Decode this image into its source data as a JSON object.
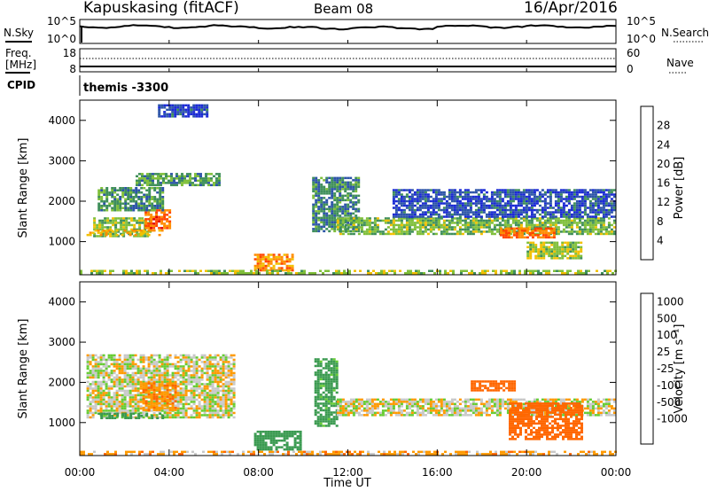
{
  "header": {
    "station": "Kapuskasing (fitACF)",
    "beam": "Beam 08",
    "date": "16/Apr/2016"
  },
  "top_panels": {
    "nsky_label": "N.Sky",
    "nsky_ticks": [
      "10^5",
      "10^0"
    ],
    "nsky_right_ticks": [
      "10^5",
      "10^0"
    ],
    "nsearch_label": "N.Search",
    "freq_label_line1": "Freq.",
    "freq_label_line2": "[MHz]",
    "freq_ticks": [
      "18",
      "8"
    ],
    "nave_ticks": [
      "60",
      "0"
    ],
    "nave_label": "Nave",
    "cpid_label": "CPID",
    "cpid_text": "themis -3300"
  },
  "colors": {
    "power_scale": [
      "#1a2ad4",
      "#2d55a8",
      "#3f8f5a",
      "#7fbf3a",
      "#f2c000",
      "#ff8c00",
      "#ff4400",
      "#e00000"
    ],
    "velocity_scale": [
      "#1a2ad4",
      "#2e5fa8",
      "#3a9a50",
      "#66cc33",
      "#c8c8c8",
      "#ff9900",
      "#ff6600",
      "#ff2200",
      "#e00000"
    ],
    "ground_scatter": "#c8c8c8"
  },
  "chart_data": [
    {
      "type": "heatmap",
      "panel": "power",
      "ylabel": "Slant Range [km]",
      "xlabel": "Time UT",
      "x_ticks": [
        "00:00",
        "04:00",
        "08:00",
        "12:00",
        "16:00",
        "20:00",
        "00:00"
      ],
      "xlim_hours": [
        0,
        24
      ],
      "ylim_km": [
        180,
        4500
      ],
      "y_ticks": [
        1000,
        2000,
        3000,
        4000
      ],
      "colorbar_label": "Power [dB]",
      "colorbar_ticks": [
        "4",
        "8",
        "12",
        "16",
        "20",
        "24",
        "28"
      ],
      "colorbar_range": [
        0,
        30
      ],
      "bands": [
        {
          "t0": 0.6,
          "t1": 3.2,
          "r0": 1100,
          "r1": 1600,
          "value": 14
        },
        {
          "t0": 2.9,
          "t1": 4.1,
          "r0": 1300,
          "r1": 1800,
          "value": 25
        },
        {
          "t0": 0.8,
          "t1": 3.8,
          "r0": 1750,
          "r1": 2350,
          "value": 10
        },
        {
          "t0": 2.5,
          "t1": 6.3,
          "r0": 2350,
          "r1": 2700,
          "value": 11
        },
        {
          "t0": 0.3,
          "t1": 3.8,
          "r0": 1150,
          "r1": 1300,
          "value": 20
        },
        {
          "t0": 7.8,
          "t1": 9.6,
          "r0": 280,
          "r1": 700,
          "value": 22
        },
        {
          "t0": 10.4,
          "t1": 12.5,
          "r0": 1250,
          "r1": 2600,
          "value": 9
        },
        {
          "t0": 11.5,
          "t1": 24.0,
          "r0": 1150,
          "r1": 1600,
          "value": 13
        },
        {
          "t0": 18.8,
          "t1": 21.3,
          "r0": 1050,
          "r1": 1350,
          "value": 24
        },
        {
          "t0": 20.0,
          "t1": 22.5,
          "r0": 550,
          "r1": 1000,
          "value": 15
        },
        {
          "t0": 14.0,
          "t1": 24.0,
          "r0": 1600,
          "r1": 2300,
          "value": 5
        },
        {
          "t0": 3.5,
          "t1": 5.8,
          "r0": 4050,
          "r1": 4400,
          "value": 5
        },
        {
          "t0": 0.0,
          "t1": 24.0,
          "r0": 190,
          "r1": 300,
          "value": 15
        }
      ]
    },
    {
      "type": "heatmap",
      "panel": "velocity",
      "ylabel": "Slant Range [km]",
      "xlabel": "Time UT",
      "x_ticks": [
        "00:00",
        "04:00",
        "08:00",
        "12:00",
        "16:00",
        "20:00",
        "00:00"
      ],
      "xlim_hours": [
        0,
        24
      ],
      "ylim_km": [
        180,
        4500
      ],
      "y_ticks": [
        1000,
        2000,
        3000,
        4000
      ],
      "colorbar_label": "Velocity [m s⁻¹]",
      "colorbar_ticks": [
        "1000",
        "500",
        "100",
        "25",
        "-25",
        "-100",
        "-500",
        "-1000"
      ],
      "colorbar_range": [
        1000,
        -1000
      ],
      "bands": [
        {
          "t0": 0.3,
          "t1": 7.0,
          "r0": 1100,
          "r1": 2700,
          "value": 0
        },
        {
          "t0": 2.8,
          "t1": 4.3,
          "r0": 1300,
          "r1": 2000,
          "value": -80
        },
        {
          "t0": 0.8,
          "t1": 3.8,
          "r0": 1100,
          "r1": 1250,
          "value": 150
        },
        {
          "t0": 7.8,
          "t1": 10.0,
          "r0": 280,
          "r1": 800,
          "value": 200
        },
        {
          "t0": 10.5,
          "t1": 11.6,
          "r0": 900,
          "r1": 2600,
          "value": 150
        },
        {
          "t0": 11.5,
          "t1": 24.0,
          "r0": 1150,
          "r1": 1600,
          "value": 0
        },
        {
          "t0": 19.2,
          "t1": 22.5,
          "r0": 550,
          "r1": 1500,
          "value": -400
        },
        {
          "t0": 17.5,
          "t1": 19.5,
          "r0": 1750,
          "r1": 2050,
          "value": -300
        },
        {
          "t0": 0.0,
          "t1": 24.0,
          "r0": 190,
          "r1": 300,
          "value": -60
        }
      ]
    }
  ]
}
